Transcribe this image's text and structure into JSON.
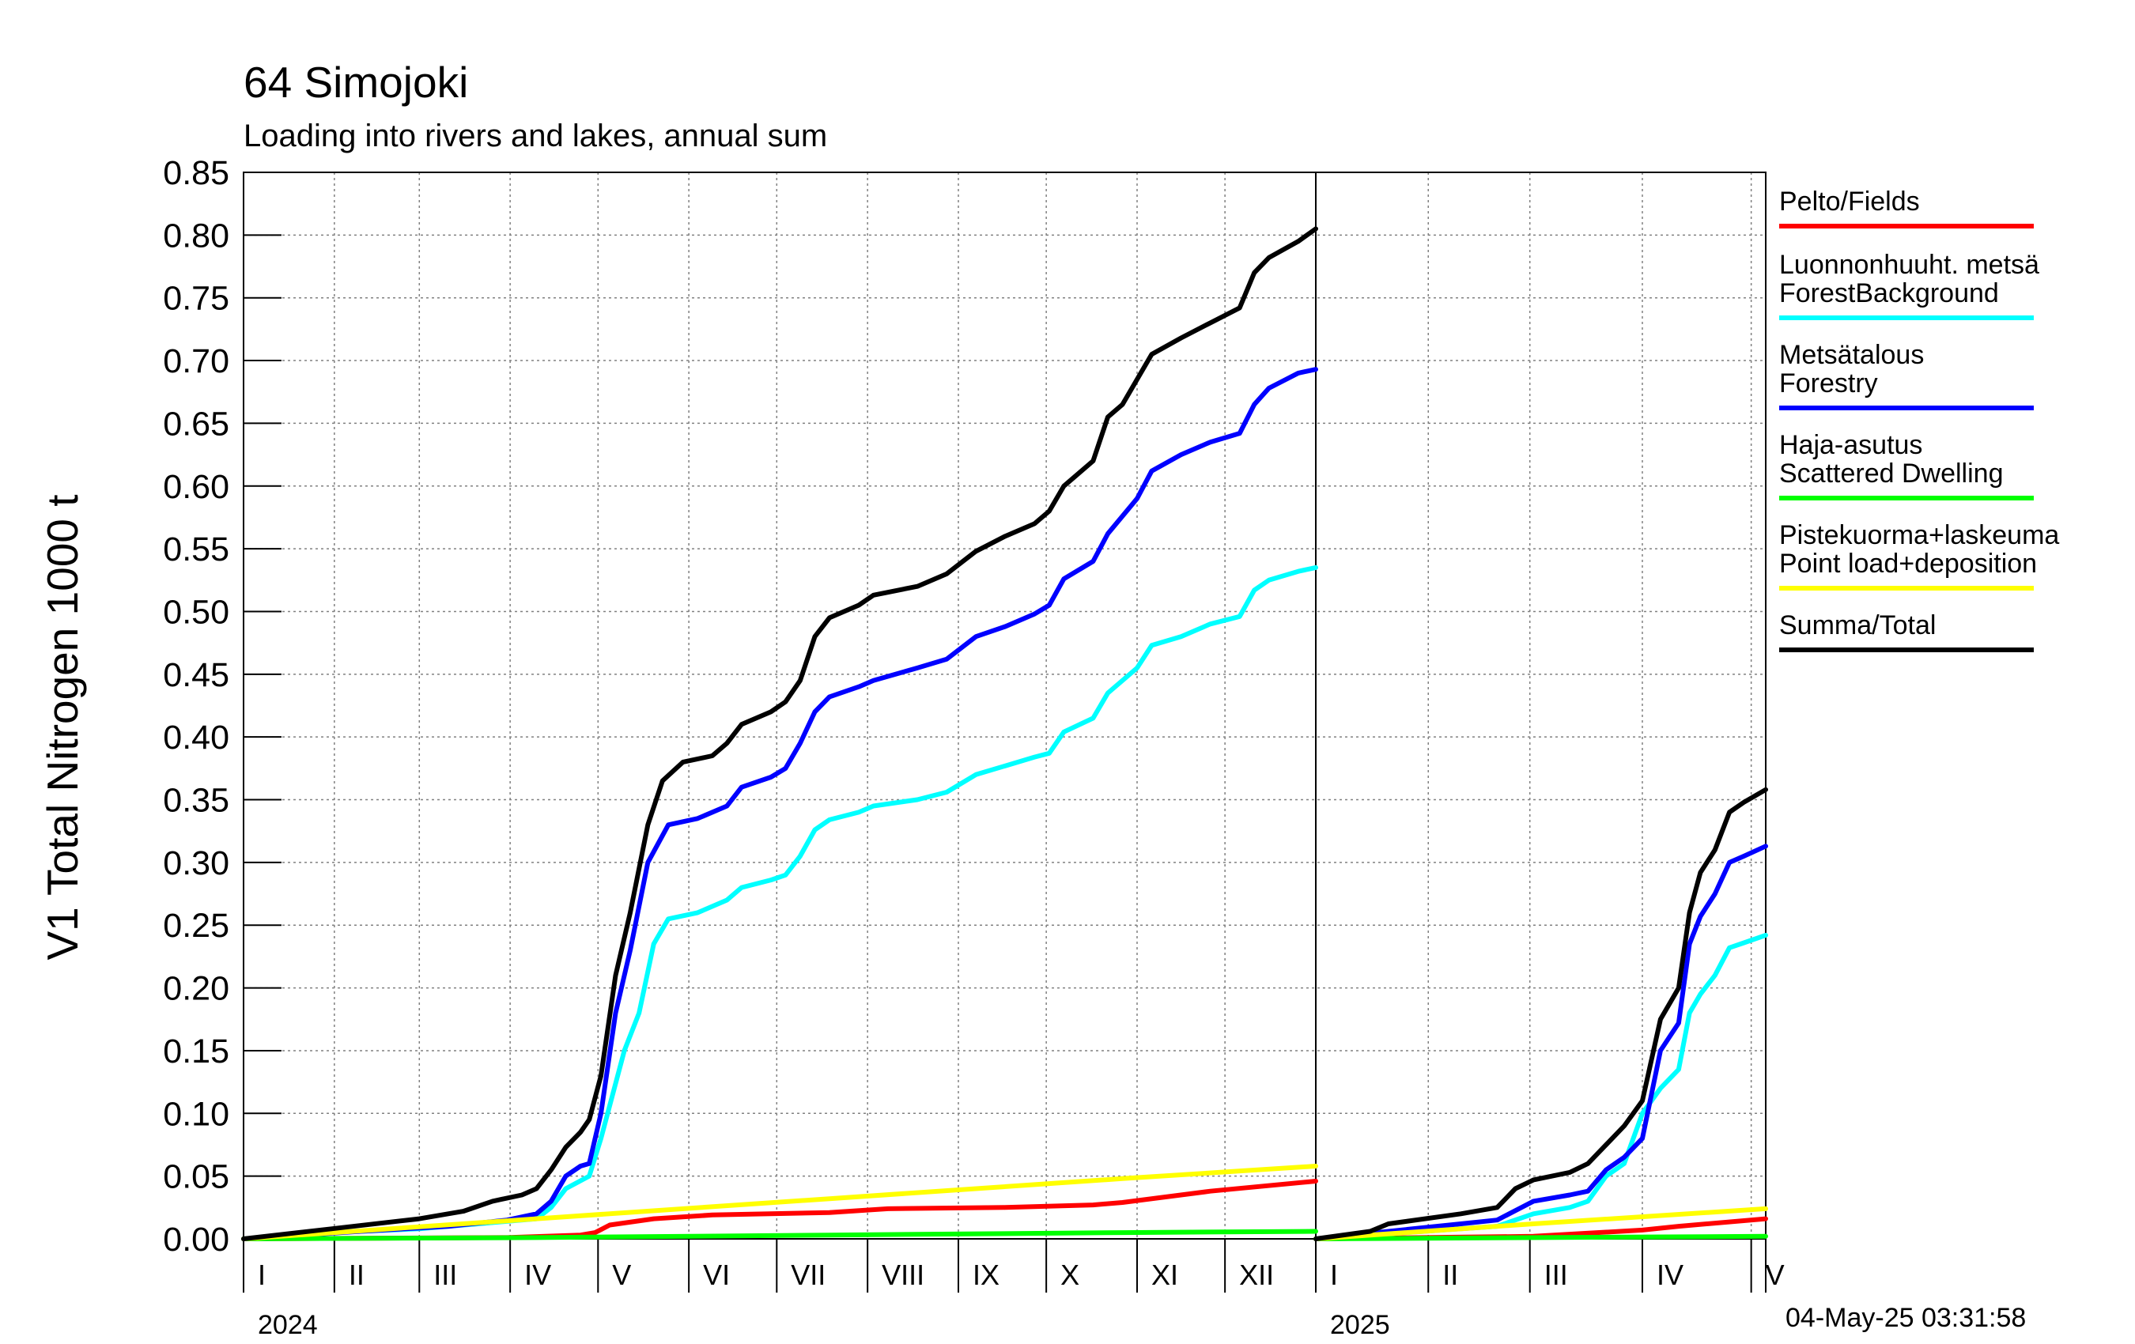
{
  "header": {
    "title": "64 Simojoki",
    "subtitle": "Loading into rivers and lakes, annual sum"
  },
  "footer": {
    "timestamp": "04-May-25 03:31:58"
  },
  "chart_data": {
    "type": "line",
    "ylabel": "V1 Total Nitrogen 1000 t",
    "ylim": [
      0,
      0.85
    ],
    "ytick_labels": [
      "0.00",
      "0.05",
      "0.10",
      "0.15",
      "0.20",
      "0.25",
      "0.30",
      "0.35",
      "0.40",
      "0.45",
      "0.50",
      "0.55",
      "0.60",
      "0.65",
      "0.70",
      "0.75",
      "0.80",
      "0.85"
    ],
    "grid": true,
    "legend_position": "right",
    "panels": [
      {
        "year": "2024",
        "month_labels": [
          "I",
          "II",
          "III",
          "IV",
          "V",
          "VI",
          "VII",
          "VIII",
          "IX",
          "X",
          "XI",
          "XII"
        ],
        "x_unit": "day of year",
        "xlim": [
          0,
          366
        ]
      },
      {
        "year": "2025",
        "month_labels": [
          "I",
          "II",
          "III",
          "IV",
          "V"
        ],
        "x_unit": "day of year",
        "xlim": [
          0,
          124
        ]
      }
    ],
    "series": [
      {
        "name": "Pelto/Fields",
        "color": "#ff0000",
        "panel_2024": [
          [
            0,
            0
          ],
          [
            90,
            0.001
          ],
          [
            115,
            0.003
          ],
          [
            120,
            0.005
          ],
          [
            125,
            0.011
          ],
          [
            140,
            0.016
          ],
          [
            160,
            0.019
          ],
          [
            200,
            0.021
          ],
          [
            220,
            0.024
          ],
          [
            260,
            0.025
          ],
          [
            290,
            0.027
          ],
          [
            300,
            0.029
          ],
          [
            330,
            0.038
          ],
          [
            366,
            0.046
          ]
        ],
        "panel_2025": [
          [
            0,
            0
          ],
          [
            60,
            0.002
          ],
          [
            90,
            0.007
          ],
          [
            100,
            0.01
          ],
          [
            124,
            0.016
          ]
        ]
      },
      {
        "name": "Luonnonhuuht. metsä ForestBackground",
        "color": "#00ffff",
        "panel_2024": [
          [
            0,
            0
          ],
          [
            30,
            0.005
          ],
          [
            60,
            0.008
          ],
          [
            80,
            0.012
          ],
          [
            100,
            0.016
          ],
          [
            105,
            0.025
          ],
          [
            110,
            0.04
          ],
          [
            118,
            0.05
          ],
          [
            122,
            0.08
          ],
          [
            130,
            0.15
          ],
          [
            135,
            0.18
          ],
          [
            140,
            0.235
          ],
          [
            145,
            0.255
          ],
          [
            155,
            0.26
          ],
          [
            165,
            0.27
          ],
          [
            170,
            0.28
          ],
          [
            180,
            0.286
          ],
          [
            185,
            0.29
          ],
          [
            190,
            0.305
          ],
          [
            195,
            0.326
          ],
          [
            200,
            0.334
          ],
          [
            210,
            0.34
          ],
          [
            215,
            0.345
          ],
          [
            230,
            0.35
          ],
          [
            240,
            0.356
          ],
          [
            250,
            0.37
          ],
          [
            260,
            0.377
          ],
          [
            270,
            0.384
          ],
          [
            275,
            0.387
          ],
          [
            280,
            0.404
          ],
          [
            290,
            0.415
          ],
          [
            295,
            0.435
          ],
          [
            305,
            0.455
          ],
          [
            310,
            0.473
          ],
          [
            320,
            0.48
          ],
          [
            330,
            0.49
          ],
          [
            340,
            0.496
          ],
          [
            345,
            0.517
          ],
          [
            350,
            0.525
          ],
          [
            360,
            0.532
          ],
          [
            366,
            0.535
          ]
        ],
        "panel_2025": [
          [
            0,
            0
          ],
          [
            40,
            0.008
          ],
          [
            50,
            0.01
          ],
          [
            60,
            0.02
          ],
          [
            70,
            0.025
          ],
          [
            75,
            0.03
          ],
          [
            80,
            0.05
          ],
          [
            85,
            0.06
          ],
          [
            90,
            0.1
          ],
          [
            95,
            0.12
          ],
          [
            100,
            0.135
          ],
          [
            103,
            0.18
          ],
          [
            106,
            0.195
          ],
          [
            110,
            0.21
          ],
          [
            114,
            0.232
          ],
          [
            118,
            0.236
          ],
          [
            124,
            0.242
          ]
        ]
      },
      {
        "name": "Metsätalous Forestry",
        "color": "#0000ff",
        "panel_2024": [
          [
            0,
            0
          ],
          [
            40,
            0.006
          ],
          [
            70,
            0.01
          ],
          [
            90,
            0.015
          ],
          [
            100,
            0.02
          ],
          [
            105,
            0.03
          ],
          [
            110,
            0.05
          ],
          [
            115,
            0.058
          ],
          [
            118,
            0.06
          ],
          [
            122,
            0.1
          ],
          [
            127,
            0.18
          ],
          [
            132,
            0.23
          ],
          [
            138,
            0.3
          ],
          [
            145,
            0.33
          ],
          [
            155,
            0.335
          ],
          [
            165,
            0.345
          ],
          [
            170,
            0.36
          ],
          [
            180,
            0.368
          ],
          [
            185,
            0.375
          ],
          [
            190,
            0.395
          ],
          [
            195,
            0.42
          ],
          [
            200,
            0.432
          ],
          [
            210,
            0.44
          ],
          [
            215,
            0.445
          ],
          [
            230,
            0.455
          ],
          [
            240,
            0.462
          ],
          [
            250,
            0.48
          ],
          [
            260,
            0.488
          ],
          [
            270,
            0.498
          ],
          [
            275,
            0.505
          ],
          [
            280,
            0.526
          ],
          [
            290,
            0.54
          ],
          [
            295,
            0.562
          ],
          [
            305,
            0.59
          ],
          [
            310,
            0.612
          ],
          [
            320,
            0.625
          ],
          [
            330,
            0.635
          ],
          [
            340,
            0.642
          ],
          [
            345,
            0.665
          ],
          [
            350,
            0.678
          ],
          [
            360,
            0.69
          ],
          [
            366,
            0.693
          ]
        ],
        "panel_2025": [
          [
            0,
            0
          ],
          [
            40,
            0.012
          ],
          [
            50,
            0.015
          ],
          [
            60,
            0.03
          ],
          [
            70,
            0.035
          ],
          [
            75,
            0.038
          ],
          [
            80,
            0.055
          ],
          [
            85,
            0.065
          ],
          [
            90,
            0.08
          ],
          [
            95,
            0.15
          ],
          [
            100,
            0.172
          ],
          [
            103,
            0.235
          ],
          [
            106,
            0.257
          ],
          [
            110,
            0.275
          ],
          [
            114,
            0.3
          ],
          [
            118,
            0.305
          ],
          [
            124,
            0.313
          ]
        ]
      },
      {
        "name": "Haja-asutus Scattered Dwelling",
        "color": "#00ff00",
        "panel_2024": [
          [
            0,
            0
          ],
          [
            100,
            0.001
          ],
          [
            200,
            0.003
          ],
          [
            300,
            0.005
          ],
          [
            366,
            0.006
          ]
        ],
        "panel_2025": [
          [
            0,
            0
          ],
          [
            124,
            0.002
          ]
        ]
      },
      {
        "name": "Pistekuorma+laskeuma Point load+deposition",
        "color": "#ffff00",
        "panel_2024": [
          [
            0,
            0
          ],
          [
            100,
            0.016
          ],
          [
            200,
            0.032
          ],
          [
            300,
            0.048
          ],
          [
            366,
            0.058
          ]
        ],
        "panel_2025": [
          [
            0,
            0
          ],
          [
            60,
            0.012
          ],
          [
            124,
            0.024
          ]
        ]
      },
      {
        "name": "Summa/Total",
        "color": "#000000",
        "panel_2024": [
          [
            0,
            0
          ],
          [
            30,
            0.008
          ],
          [
            60,
            0.016
          ],
          [
            75,
            0.022
          ],
          [
            85,
            0.03
          ],
          [
            95,
            0.035
          ],
          [
            100,
            0.04
          ],
          [
            105,
            0.055
          ],
          [
            110,
            0.073
          ],
          [
            115,
            0.085
          ],
          [
            118,
            0.095
          ],
          [
            122,
            0.13
          ],
          [
            127,
            0.21
          ],
          [
            132,
            0.26
          ],
          [
            138,
            0.33
          ],
          [
            143,
            0.365
          ],
          [
            150,
            0.38
          ],
          [
            160,
            0.385
          ],
          [
            165,
            0.395
          ],
          [
            170,
            0.41
          ],
          [
            180,
            0.42
          ],
          [
            185,
            0.428
          ],
          [
            190,
            0.445
          ],
          [
            195,
            0.48
          ],
          [
            200,
            0.495
          ],
          [
            210,
            0.505
          ],
          [
            215,
            0.513
          ],
          [
            230,
            0.52
          ],
          [
            240,
            0.53
          ],
          [
            250,
            0.548
          ],
          [
            260,
            0.56
          ],
          [
            270,
            0.57
          ],
          [
            275,
            0.58
          ],
          [
            280,
            0.6
          ],
          [
            290,
            0.62
          ],
          [
            295,
            0.655
          ],
          [
            300,
            0.665
          ],
          [
            305,
            0.685
          ],
          [
            310,
            0.705
          ],
          [
            320,
            0.718
          ],
          [
            330,
            0.73
          ],
          [
            340,
            0.742
          ],
          [
            345,
            0.77
          ],
          [
            350,
            0.782
          ],
          [
            360,
            0.795
          ],
          [
            366,
            0.805
          ]
        ],
        "panel_2025": [
          [
            0,
            0
          ],
          [
            15,
            0.006
          ],
          [
            20,
            0.012
          ],
          [
            40,
            0.02
          ],
          [
            50,
            0.025
          ],
          [
            55,
            0.04
          ],
          [
            60,
            0.047
          ],
          [
            70,
            0.053
          ],
          [
            75,
            0.06
          ],
          [
            80,
            0.075
          ],
          [
            85,
            0.09
          ],
          [
            90,
            0.11
          ],
          [
            95,
            0.175
          ],
          [
            100,
            0.2
          ],
          [
            103,
            0.26
          ],
          [
            106,
            0.292
          ],
          [
            110,
            0.31
          ],
          [
            114,
            0.34
          ],
          [
            118,
            0.348
          ],
          [
            124,
            0.358
          ]
        ]
      }
    ]
  }
}
